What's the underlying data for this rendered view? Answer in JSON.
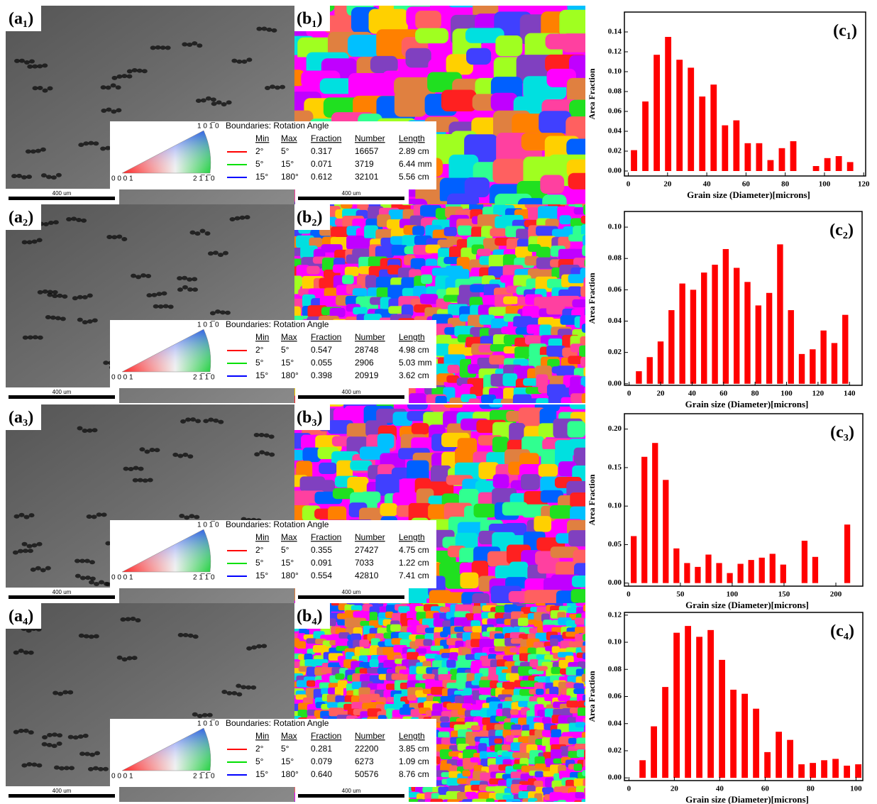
{
  "panels": [
    {
      "a_label": "(a₁)",
      "b_label": "(b₁)",
      "scale_a": "400 um",
      "scale_b": "400 um",
      "legend": {
        "ipf_labels": [
          "1 0 1̅ 0",
          "0 0 0 1",
          "2 1̅ 1̅ 0"
        ],
        "title": "Boundaries: Rotation Angle",
        "columns": [
          "Min",
          "Max",
          "Fraction",
          "Number",
          "Length"
        ],
        "rows": [
          [
            "2°",
            "5°",
            "0.317",
            "16657",
            "2.89 cm"
          ],
          [
            "5°",
            "15°",
            "0.071",
            "3719",
            "6.44 mm"
          ],
          [
            "15°",
            "180°",
            "0.612",
            "32101",
            "5.56 cm"
          ]
        ]
      }
    },
    {
      "a_label": "(a₂)",
      "b_label": "(b₂)",
      "scale_a": "400 um",
      "scale_b": "400 um",
      "legend": {
        "ipf_labels": [
          "1 0 1̅ 0",
          "0 0 0 1",
          "2 1̅ 1̅ 0"
        ],
        "title": "Boundaries: Rotation Angle",
        "columns": [
          "Min",
          "Max",
          "Fraction",
          "Number",
          "Length"
        ],
        "rows": [
          [
            "2°",
            "5°",
            "0.547",
            "28748",
            "4.98 cm"
          ],
          [
            "5°",
            "15°",
            "0.055",
            "2906",
            "5.03 mm"
          ],
          [
            "15°",
            "180°",
            "0.398",
            "20919",
            "3.62 cm"
          ]
        ]
      }
    },
    {
      "a_label": "(a₃)",
      "b_label": "(b₃)",
      "scale_a": "400 um",
      "scale_b": "400 um",
      "legend": {
        "ipf_labels": [
          "1 0 1̅ 0",
          "0 0 0 1",
          "2 1̅ 1̅ 0"
        ],
        "title": "Boundaries: Rotation Angle",
        "columns": [
          "Min",
          "Max",
          "Fraction",
          "Number",
          "Length"
        ],
        "rows": [
          [
            "2°",
            "5°",
            "0.355",
            "27427",
            "4.75 cm"
          ],
          [
            "5°",
            "15°",
            "0.091",
            "7033",
            "1.22 cm"
          ],
          [
            "15°",
            "180°",
            "0.554",
            "42810",
            "7.41 cm"
          ]
        ]
      }
    },
    {
      "a_label": "(a₄)",
      "b_label": "(b₄)",
      "scale_a": "400 um",
      "scale_b": "400 um",
      "legend": {
        "ipf_labels": [
          "1 0 1̅ 0",
          "0 0 0 1",
          "2 1̅ 1̅ 0"
        ],
        "title": "Boundaries: Rotation Angle",
        "columns": [
          "Min",
          "Max",
          "Fraction",
          "Number",
          "Length"
        ],
        "rows": [
          [
            "2°",
            "5°",
            "0.281",
            "22200",
            "3.85 cm"
          ],
          [
            "5°",
            "15°",
            "0.079",
            "6273",
            "1.09 cm"
          ],
          [
            "15°",
            "180°",
            "0.640",
            "50576",
            "8.76 cm"
          ]
        ]
      }
    }
  ],
  "chart_data": [
    {
      "type": "bar",
      "panel_label": "(c₁)",
      "xlabel": "Grain size (Diameter)[microns]",
      "ylabel": "Area Fraction",
      "color": "#ff0000",
      "x": [
        2.9,
        8.7,
        14.5,
        20.3,
        26.1,
        31.9,
        37.7,
        43.5,
        49.3,
        55.1,
        60.9,
        66.7,
        72.5,
        78.3,
        84.1,
        95.7,
        101.5,
        107.3,
        113.1
      ],
      "values": [
        0.021,
        0.07,
        0.117,
        0.135,
        0.112,
        0.104,
        0.075,
        0.087,
        0.046,
        0.051,
        0.028,
        0.028,
        0.011,
        0.023,
        0.03,
        0.005,
        0.013,
        0.015,
        0.009
      ],
      "xlim": [
        -2,
        121
      ],
      "xticks": [
        0,
        20,
        40,
        60,
        80,
        100,
        120
      ],
      "ylim": [
        -0.005,
        0.16
      ],
      "yticks": [
        {
          "value": 0,
          "label": "0.00"
        },
        0.02,
        0.04,
        0.06,
        0.08,
        {
          "value": 0.1,
          "label": "0.10"
        },
        0.12,
        0.14
      ]
    },
    {
      "type": "bar",
      "panel_label": "(c₂)",
      "xlabel": "Grain size (Diameter)[microns]",
      "ylabel": "Area Fraction",
      "color": "#ff0000",
      "x": [
        6.2,
        13.1,
        20,
        26.9,
        33.8,
        40.7,
        47.6,
        54.5,
        61.4,
        68.3,
        75.2,
        82.1,
        89,
        95.9,
        102.8,
        109.7,
        116.6,
        123.5,
        130.4,
        137.3
      ],
      "values": [
        0.008,
        0.017,
        0.027,
        0.047,
        0.064,
        0.06,
        0.071,
        0.076,
        0.086,
        0.074,
        0.065,
        0.05,
        0.058,
        0.089,
        0.047,
        0.019,
        0.022,
        0.034,
        0.026,
        0.044
      ],
      "xlim": [
        -3,
        148
      ],
      "xticks": [
        0,
        20,
        40,
        60,
        80,
        100,
        120,
        140
      ],
      "ylim": [
        -0.001,
        0.11
      ],
      "yticks": [
        {
          "value": 0,
          "label": "0.00"
        },
        0.02,
        0.04,
        0.06,
        0.08,
        {
          "value": 0.1,
          "label": "0.10"
        }
      ]
    },
    {
      "type": "bar",
      "panel_label": "(c₃)",
      "xlabel": "Grain size (Diameter)[microns]",
      "ylabel": "Area Fraction",
      "color": "#ff0000",
      "x": [
        5,
        15.3,
        25.6,
        35.9,
        46.2,
        56.5,
        66.8,
        77.1,
        87.4,
        97.7,
        108,
        118.3,
        128.6,
        138.9,
        149.2,
        169.8,
        180.1,
        211
      ],
      "values": [
        0.061,
        0.164,
        0.182,
        0.134,
        0.045,
        0.026,
        0.021,
        0.037,
        0.026,
        0.013,
        0.025,
        0.03,
        0.033,
        0.038,
        0.024,
        0.055,
        0.034,
        0.076
      ],
      "xlim": [
        -4,
        226
      ],
      "xticks": [
        0,
        50,
        100,
        150,
        200
      ],
      "ylim": [
        -0.004,
        0.22
      ],
      "yticks": [
        {
          "value": 0,
          "label": "0.00"
        },
        0.05,
        {
          "value": 0.1,
          "label": "0.10"
        },
        0.15,
        {
          "value": 0.2,
          "label": "0.20"
        }
      ]
    },
    {
      "type": "bar",
      "panel_label": "(c₄)",
      "xlabel": "Grain size (Diameter)[microns]",
      "ylabel": "Area Fraction",
      "color": "#ff0000",
      "x": [
        6,
        11,
        16,
        21,
        26,
        31,
        36,
        41,
        46,
        51,
        56,
        61,
        66,
        71,
        76,
        81,
        86,
        91,
        96,
        101
      ],
      "values": [
        0.013,
        0.038,
        0.067,
        0.107,
        0.112,
        0.104,
        0.109,
        0.087,
        0.065,
        0.062,
        0.051,
        0.019,
        0.034,
        0.028,
        0.01,
        0.011,
        0.013,
        0.014,
        0.009,
        0.01
      ],
      "xlim": [
        -2,
        103
      ],
      "xticks": [
        0,
        20,
        40,
        60,
        80,
        100
      ],
      "ylim": [
        -0.002,
        0.122
      ],
      "yticks": [
        {
          "value": 0,
          "label": "0.00"
        },
        0.02,
        0.04,
        0.06,
        0.08,
        {
          "value": 0.1,
          "label": "0.10"
        },
        0.12
      ]
    }
  ]
}
